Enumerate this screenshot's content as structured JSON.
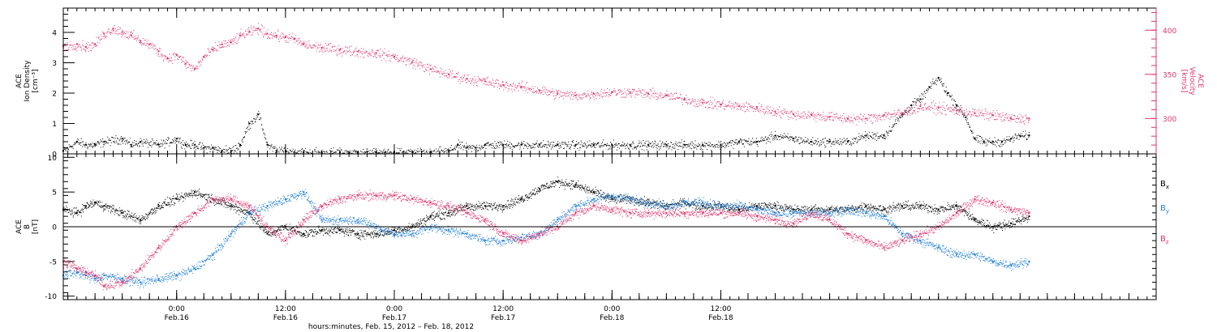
{
  "colors": {
    "black": "#000000",
    "blue": "#1e7fd6",
    "red": "#e0336b"
  },
  "chart_data": [
    {
      "type": "scatter",
      "panel": "ace-ion-density-velocity",
      "title": "",
      "y_left": {
        "label_lines": [
          "ACE",
          "Ion Density",
          "[cm⁻³]"
        ],
        "ylim": [
          0,
          4.8
        ],
        "ticks": [
          0,
          1,
          2,
          3,
          4
        ]
      },
      "y_right": {
        "label_lines": [
          "ACE",
          "Velocity",
          "[km/s]"
        ],
        "ylim": [
          260,
          425
        ],
        "ticks": [
          300,
          350,
          400
        ]
      },
      "series": [
        {
          "name": "Ion Density",
          "color": "#000000",
          "axis": "left",
          "x": [
            -12.5,
            -11,
            -10,
            -9,
            -8,
            -6,
            -5,
            -4,
            -2,
            0,
            1,
            2,
            3,
            4,
            5,
            6,
            7,
            8,
            9,
            10,
            11,
            12,
            14,
            16,
            18,
            20,
            22,
            24,
            26,
            28,
            30,
            31,
            32,
            33,
            34,
            36,
            38,
            40,
            42,
            44,
            46,
            48,
            50,
            52,
            54,
            56,
            58,
            60,
            62,
            64,
            66,
            68,
            70,
            72,
            74,
            76,
            78,
            80,
            81,
            82,
            83,
            84,
            85,
            86,
            87,
            88,
            89,
            90,
            91,
            92,
            93,
            94
          ],
          "values": [
            0.1,
            0.4,
            0.3,
            0.3,
            0.4,
            0.5,
            0.3,
            0.4,
            0.3,
            0.5,
            0.3,
            0.3,
            0.2,
            0.2,
            0.1,
            0.1,
            0.3,
            1.0,
            1.3,
            0.3,
            0.1,
            0.1,
            0.05,
            0.05,
            0.05,
            0.05,
            0.05,
            0.05,
            0.05,
            0.05,
            0.1,
            0.3,
            0.2,
            0.2,
            0.3,
            0.3,
            0.3,
            0.3,
            0.3,
            0.3,
            0.3,
            0.3,
            0.3,
            0.3,
            0.3,
            0.3,
            0.3,
            0.3,
            0.4,
            0.4,
            0.6,
            0.5,
            0.4,
            0.4,
            0.4,
            0.6,
            0.6,
            1.3,
            1.6,
            1.8,
            2.2,
            2.5,
            2.0,
            1.6,
            1.2,
            0.5,
            0.4,
            0.4,
            0.4,
            0.5,
            0.6,
            0.6
          ]
        },
        {
          "name": "Velocity",
          "color": "#e0336b",
          "axis": "right",
          "x": [
            -12.5,
            -11,
            -10,
            -9,
            -8,
            -7,
            -6,
            -5,
            -4,
            -3,
            -2,
            -1,
            0,
            1,
            2,
            3,
            4,
            5,
            6,
            7,
            8,
            9,
            10,
            11,
            12,
            13,
            14,
            16,
            18,
            20,
            22,
            24,
            26,
            28,
            30,
            32,
            34,
            36,
            38,
            40,
            42,
            44,
            46,
            48,
            50,
            52,
            54,
            56,
            58,
            60,
            62,
            64,
            66,
            68,
            70,
            72,
            74,
            76,
            78,
            80,
            82,
            84,
            86,
            88,
            90,
            92,
            94
          ],
          "values": [
            382,
            384,
            381,
            384,
            396,
            402,
            398,
            394,
            388,
            384,
            376,
            368,
            372,
            362,
            356,
            370,
            378,
            384,
            386,
            394,
            398,
            402,
            396,
            394,
            392,
            390,
            384,
            380,
            378,
            376,
            374,
            370,
            364,
            356,
            350,
            345,
            342,
            338,
            336,
            332,
            328,
            326,
            328,
            330,
            330,
            328,
            326,
            322,
            318,
            316,
            314,
            312,
            308,
            305,
            304,
            302,
            300,
            300,
            304,
            306,
            314,
            312,
            309,
            306,
            304,
            300,
            300
          ]
        }
      ]
    },
    {
      "type": "scatter",
      "panel": "ace-magnetic-field",
      "title": "",
      "y_left": {
        "label_lines": [
          "ACE",
          "B",
          "[nT]"
        ],
        "ylim": [
          -10.5,
          10.5
        ],
        "ticks": [
          -10,
          -5,
          0,
          5,
          10
        ]
      },
      "zero_line": true,
      "series": [
        {
          "name": "Bx",
          "legend_main": "B",
          "legend_sub": "x",
          "color": "#000000",
          "x": [
            -12.5,
            -11,
            -10,
            -9,
            -8,
            -6,
            -4,
            -2,
            0,
            2,
            4,
            6,
            8,
            10,
            12,
            14,
            16,
            18,
            20,
            22,
            24,
            26,
            28,
            30,
            32,
            34,
            36,
            38,
            40,
            42,
            44,
            46,
            48,
            50,
            52,
            54,
            56,
            58,
            60,
            62,
            64,
            66,
            68,
            70,
            72,
            74,
            76,
            78,
            80,
            82,
            84,
            86,
            88,
            90,
            92,
            94
          ],
          "values": [
            2.5,
            2,
            3,
            3.5,
            3,
            2,
            1,
            3,
            4,
            5,
            4,
            3,
            2,
            -1,
            0,
            -1,
            -0.5,
            -0.5,
            -1,
            -1,
            -0.5,
            0,
            1.5,
            2,
            3,
            3,
            3,
            4,
            5.5,
            6.5,
            6,
            5,
            4,
            4,
            3.5,
            3,
            3.5,
            3,
            3,
            2.5,
            3,
            3,
            2.5,
            2.5,
            2.5,
            2.5,
            3,
            2.5,
            3,
            3,
            2.5,
            3,
            1,
            0,
            0.5,
            1.5
          ]
        },
        {
          "name": "By",
          "legend_main": "B",
          "legend_sub": "y",
          "color": "#1e7fd6",
          "x": [
            -12.5,
            -11,
            -10,
            -9,
            -8,
            -6,
            -4,
            -2,
            0,
            2,
            4,
            6,
            8,
            10,
            12,
            14,
            16,
            18,
            20,
            22,
            24,
            26,
            28,
            30,
            32,
            34,
            36,
            38,
            40,
            42,
            44,
            46,
            48,
            50,
            52,
            54,
            56,
            58,
            60,
            62,
            64,
            66,
            68,
            70,
            72,
            74,
            76,
            78,
            80,
            82,
            84,
            86,
            88,
            90,
            92,
            94
          ],
          "values": [
            -7,
            -6.5,
            -7,
            -7.5,
            -7,
            -7.5,
            -8,
            -7.5,
            -7,
            -6,
            -4,
            -1,
            2,
            3,
            4,
            5,
            1,
            1,
            1,
            0,
            -1,
            -1,
            0,
            -0.5,
            -1,
            -2,
            -2,
            -1.5,
            -1,
            1,
            3,
            4,
            4.5,
            4,
            3.5,
            3,
            3.5,
            3.5,
            3,
            3,
            2.5,
            2,
            2,
            2,
            2,
            2.5,
            2,
            1.5,
            -1,
            -2,
            -3,
            -4,
            -4,
            -5,
            -5.5,
            -5
          ]
        },
        {
          "name": "Bz",
          "legend_main": "B",
          "legend_sub": "z",
          "color": "#e0336b",
          "x": [
            -12.5,
            -11,
            -10,
            -9,
            -8,
            -6,
            -4,
            -2,
            0,
            2,
            4,
            6,
            8,
            10,
            12,
            14,
            16,
            18,
            20,
            22,
            24,
            26,
            28,
            30,
            32,
            34,
            36,
            38,
            40,
            42,
            44,
            46,
            48,
            50,
            52,
            54,
            56,
            58,
            60,
            62,
            64,
            66,
            68,
            70,
            72,
            74,
            76,
            78,
            80,
            82,
            84,
            86,
            88,
            90,
            92,
            94
          ],
          "values": [
            -5,
            -6,
            -6.5,
            -7,
            -8.5,
            -8,
            -6,
            -3,
            0,
            2,
            4,
            4,
            3,
            0,
            -2,
            1,
            3,
            4,
            4.5,
            4.5,
            4.5,
            4,
            3.5,
            3,
            2,
            1,
            -1,
            -2,
            -1,
            0,
            2,
            3,
            2.5,
            2,
            2,
            2,
            2,
            2,
            2,
            2,
            1.5,
            1,
            0.5,
            2,
            1,
            -1,
            -2,
            -3,
            -2,
            -1,
            0,
            2,
            4,
            3.5,
            2.5,
            2
          ]
        }
      ]
    }
  ],
  "x_axis": {
    "xlim": [
      -12.5,
      108
    ],
    "ticks": [
      {
        "x": 0,
        "time": "0:00",
        "date": "Feb.16"
      },
      {
        "x": 12,
        "time": "12:00",
        "date": "Feb.16"
      },
      {
        "x": 24,
        "time": "0:00",
        "date": "Feb.17"
      },
      {
        "x": 36,
        "time": "12:00",
        "date": "Feb.17"
      },
      {
        "x": 48,
        "time": "0:00",
        "date": "Feb.18"
      },
      {
        "x": 60,
        "time": "12:00",
        "date": "Feb.18"
      }
    ],
    "caption": "hours:minutes, Feb. 15, 2012 – Feb. 18, 2012"
  }
}
